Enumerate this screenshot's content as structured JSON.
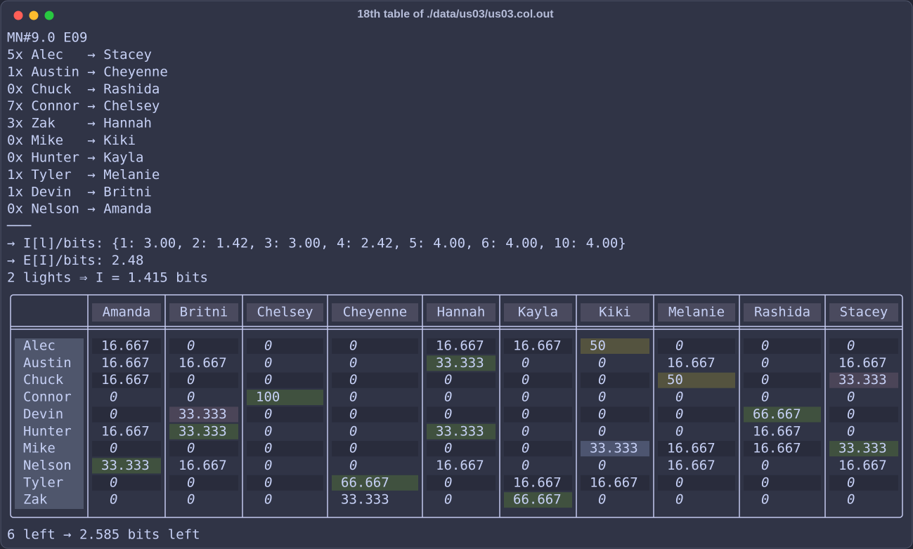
{
  "window": {
    "title": "18th table of ./data/us03/us03.col.out"
  },
  "lines": [
    "MN#9.0 E09",
    "5x Alec   → Stacey",
    "1x Austin → Cheyenne",
    "0x Chuck  → Rashida",
    "7x Connor → Chelsey",
    "3x Zak    → Hannah",
    "0x Mike   → Kiki",
    "0x Hunter → Kayla",
    "1x Tyler  → Melanie",
    "1x Devin  → Britni",
    "0x Nelson → Amanda",
    "───",
    "→ I[l]/bits: {1: 3.00, 2: 1.42, 3: 3.00, 4: 2.42, 5: 4.00, 6: 4.00, 10: 4.00}",
    "→ E[I]/bits: 2.48",
    "2 lights ⇒ I = 1.415 bits"
  ],
  "table": {
    "columns": [
      "Amanda",
      "Britni",
      "Chelsey",
      "Cheyenne",
      "Hannah",
      "Kayla",
      "Kiki",
      "Melanie",
      "Rashida",
      "Stacey"
    ],
    "rows": [
      {
        "name": "Alec",
        "cells": [
          "16.667",
          "0",
          "0",
          "0",
          "16.667",
          "16.667",
          "50",
          "0",
          "0",
          "0"
        ]
      },
      {
        "name": "Austin",
        "cells": [
          "16.667",
          "16.667",
          "0",
          "0",
          "33.333",
          "0",
          "0",
          "16.667",
          "0",
          "16.667"
        ]
      },
      {
        "name": "Chuck",
        "cells": [
          "16.667",
          "0",
          "0",
          "0",
          "0",
          "0",
          "0",
          "50",
          "0",
          "33.333"
        ]
      },
      {
        "name": "Connor",
        "cells": [
          "0",
          "0",
          "100",
          "0",
          "0",
          "0",
          "0",
          "0",
          "0",
          "0"
        ]
      },
      {
        "name": "Devin",
        "cells": [
          "0",
          "33.333",
          "0",
          "0",
          "0",
          "0",
          "0",
          "0",
          "66.667",
          "0"
        ]
      },
      {
        "name": "Hunter",
        "cells": [
          "16.667",
          "33.333",
          "0",
          "0",
          "33.333",
          "0",
          "0",
          "0",
          "16.667",
          "0"
        ]
      },
      {
        "name": "Mike",
        "cells": [
          "0",
          "0",
          "0",
          "0",
          "0",
          "0",
          "33.333",
          "16.667",
          "16.667",
          "33.333"
        ]
      },
      {
        "name": "Nelson",
        "cells": [
          "33.333",
          "16.667",
          "0",
          "0",
          "16.667",
          "0",
          "0",
          "16.667",
          "0",
          "16.667"
        ]
      },
      {
        "name": "Tyler",
        "cells": [
          "0",
          "0",
          "0",
          "66.667",
          "0",
          "16.667",
          "16.667",
          "0",
          "0",
          "0"
        ]
      },
      {
        "name": "Zak",
        "cells": [
          "0",
          "0",
          "0",
          "33.333",
          "0",
          "66.667",
          "0",
          "0",
          "0",
          "0"
        ]
      }
    ]
  },
  "footer": "6 left → 2.585 bits left"
}
